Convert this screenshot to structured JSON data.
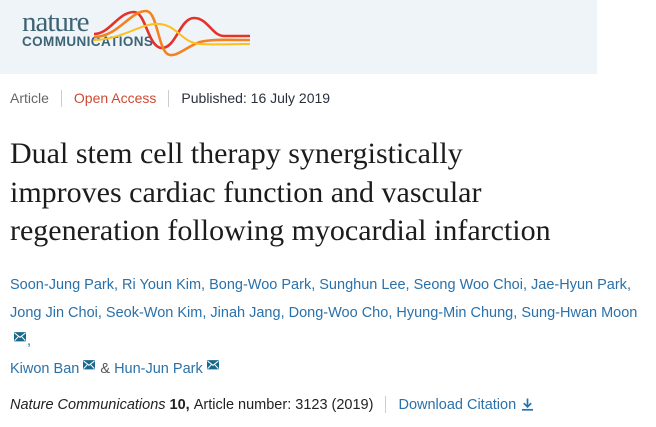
{
  "header": {
    "journal_name": "nature",
    "journal_subname": "COMMUNICATIONS"
  },
  "meta": {
    "article_type": "Article",
    "access_label": "Open Access",
    "published": "Published: 16 July 2019"
  },
  "title": "Dual stem cell therapy synergistically improves cardiac function and vascular regeneration following myocardial infarction",
  "authors": [
    {
      "name": "Soon-Jung Park"
    },
    {
      "name": "Ri Youn Kim"
    },
    {
      "name": "Bong-Woo Park"
    },
    {
      "name": "Sunghun Lee"
    },
    {
      "name": "Seong Woo Choi"
    },
    {
      "name": "Jae-Hyun Park",
      "break_after": true
    },
    {
      "name": "Jong Jin Choi"
    },
    {
      "name": "Seok-Won Kim"
    },
    {
      "name": "Jinah Jang"
    },
    {
      "name": "Dong-Woo Cho"
    },
    {
      "name": "Hyung-Min Chung"
    },
    {
      "name": "Sung-Hwan Moon",
      "email": true,
      "break_after": true
    },
    {
      "name": "Kiwon Ban",
      "email": true
    },
    {
      "name": "Hun-Jun Park",
      "email": true
    }
  ],
  "author_separators": {
    "default": ", ",
    "last": " & "
  },
  "citation": {
    "journal": "Nature Communications",
    "volume": "10,",
    "article_info": "Article number: 3123 (2019)",
    "download_label": "Download Citation"
  },
  "icons": {
    "email": "envelope-icon",
    "download": "download-icon",
    "logo_waves": "journal-logo-waves"
  },
  "colors": {
    "header_bg": "#eef4f7",
    "logo_teal": "#3d6374",
    "wave_red": "#e4322b",
    "wave_orange": "#f58220",
    "wave_yellow": "#fcbf1e",
    "open_access_red": "#cf4a31",
    "meta_gray": "#666666",
    "published_navy": "#29303c",
    "link_blue": "#2a71a9",
    "envelope_fill": "#19688e",
    "title_dark": "#1c1c1c"
  }
}
